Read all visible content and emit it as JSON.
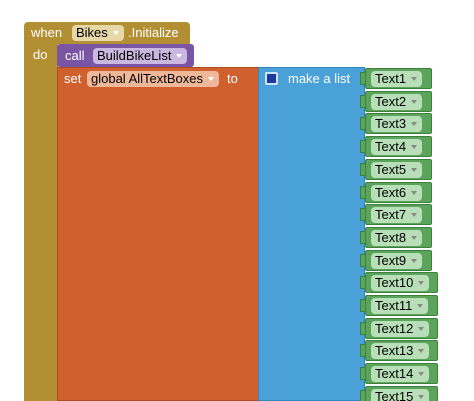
{
  "event": {
    "keyword": "when",
    "component": "Bikes",
    "event_name": ".Initialize",
    "do": "do"
  },
  "call": {
    "keyword": "call",
    "procedure": "BuildBikeList"
  },
  "set": {
    "keyword": "set",
    "variable": "global AllTextBoxes",
    "to": "to"
  },
  "list": {
    "label": "make a list",
    "items": [
      "Text1",
      "Text2",
      "Text3",
      "Text4",
      "Text5",
      "Text6",
      "Text7",
      "Text8",
      "Text9",
      "Text10",
      "Text11",
      "Text12",
      "Text13",
      "Text14",
      "Text15"
    ]
  }
}
